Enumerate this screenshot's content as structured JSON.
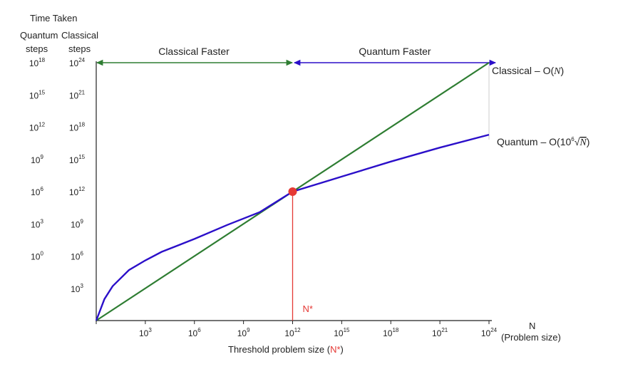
{
  "chart_data": {
    "type": "line",
    "axis_title_top": "Time Taken",
    "left_headers": {
      "quantum": [
        "Quantum",
        "steps"
      ],
      "classical": [
        "Classical",
        "steps"
      ]
    },
    "quantum_ticks": [
      {
        "base": "10",
        "exp": "18"
      },
      {
        "base": "10",
        "exp": "15"
      },
      {
        "base": "10",
        "exp": "12"
      },
      {
        "base": "10",
        "exp": "9"
      },
      {
        "base": "10",
        "exp": "6"
      },
      {
        "base": "10",
        "exp": "3"
      },
      {
        "base": "10",
        "exp": "0"
      }
    ],
    "classical_ticks": [
      {
        "base": "10",
        "exp": "24"
      },
      {
        "base": "10",
        "exp": "21"
      },
      {
        "base": "10",
        "exp": "18"
      },
      {
        "base": "10",
        "exp": "15"
      },
      {
        "base": "10",
        "exp": "12"
      },
      {
        "base": "10",
        "exp": "9"
      },
      {
        "base": "10",
        "exp": "6"
      },
      {
        "base": "10",
        "exp": "3"
      }
    ],
    "x_ticks": [
      {
        "base": "10",
        "exp": "3"
      },
      {
        "base": "10",
        "exp": "6"
      },
      {
        "base": "10",
        "exp": "9"
      },
      {
        "base": "10",
        "exp": "12"
      },
      {
        "base": "10",
        "exp": "15"
      },
      {
        "base": "10",
        "exp": "18"
      },
      {
        "base": "10",
        "exp": "21"
      },
      {
        "base": "10",
        "exp": "24"
      }
    ],
    "x_label_top": "N",
    "x_label_bottom": "(Problem size)",
    "threshold_label_prefix": "Threshold problem size (",
    "threshold_label_marker": "N*",
    "threshold_label_suffix": ")",
    "threshold_point_label": "N*",
    "threshold_exp": 12,
    "x_log_range": [
      0,
      24
    ],
    "y_log_range": [
      0,
      24
    ],
    "regions": [
      {
        "label": "Classical Faster"
      },
      {
        "label": "Quantum Faster"
      }
    ],
    "series": [
      {
        "name": "Classical – O(N)",
        "color": "#2e7d32",
        "label_parts": [
          "Classical – O(",
          "N",
          ")"
        ],
        "points_log": [
          [
            0,
            0
          ],
          [
            12,
            12
          ],
          [
            24,
            24
          ]
        ]
      },
      {
        "name": "Quantum – O(10^6√N)",
        "color": "#2b0fc9",
        "label_parts": [
          "Quantum – O(10",
          "6",
          "√",
          "N",
          ")"
        ],
        "points_log": [
          [
            0,
            0
          ],
          [
            0.5,
            2.0
          ],
          [
            1,
            3.2
          ],
          [
            2,
            4.7
          ],
          [
            3,
            5.6
          ],
          [
            4,
            6.4
          ],
          [
            6,
            7.6
          ],
          [
            8,
            8.9
          ],
          [
            10,
            10.1
          ],
          [
            12,
            12
          ],
          [
            15,
            13.4
          ],
          [
            18,
            14.8
          ],
          [
            21,
            16.1
          ],
          [
            24,
            17.3
          ]
        ]
      }
    ],
    "threshold_color": "#e53935"
  }
}
